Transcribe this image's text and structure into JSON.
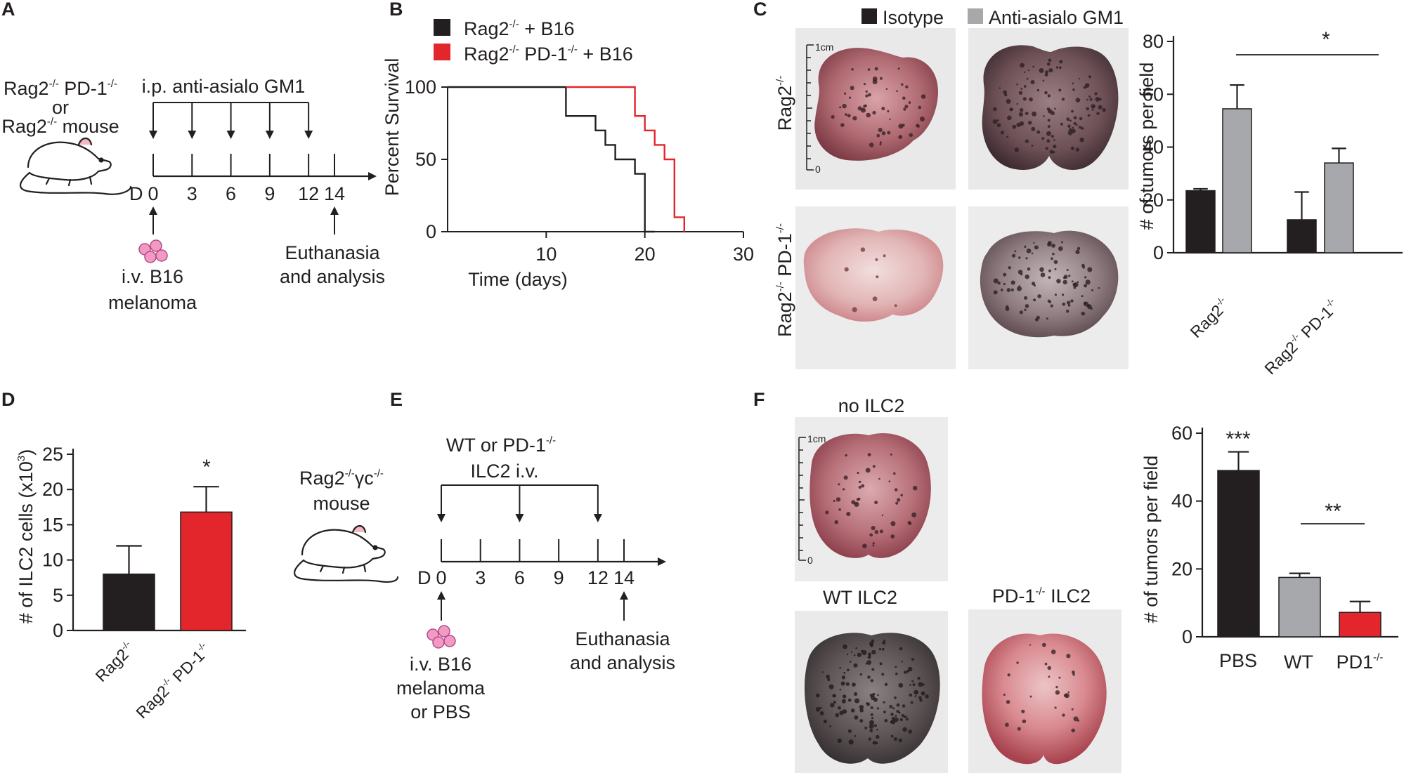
{
  "panels": {
    "A": {
      "letter": "A",
      "mouse": {
        "line1": "Rag2",
        "line1_sup": "-/-",
        "line1_rest": " PD-1",
        "line1_sup2": "-/-",
        "line2": "or",
        "line3": "Rag2",
        "line3_sup": "-/-",
        "line3_rest": " mouse"
      },
      "treatment": "i.p. anti-asialo GM1",
      "day_prefix": "D",
      "days": [
        "0",
        "3",
        "6",
        "9",
        "12",
        "14"
      ],
      "injection": [
        "i.v. B16",
        "melanoma"
      ],
      "endpoint": [
        "Euthanasia",
        "and analysis"
      ]
    },
    "B": {
      "letter": "B",
      "ylabel": "Percent Survival",
      "xlabel": "Time (days)",
      "yticks": [
        "0",
        "50",
        "100"
      ],
      "xticks": [
        "10",
        "20",
        "30"
      ],
      "legend": [
        {
          "pre": "Rag2",
          "sup": "-/-",
          "post": " + B16",
          "color": "#231f20"
        },
        {
          "pre": "Rag2",
          "sup": "-/-",
          "post": " PD-1",
          "sup2": "-/-",
          "post2": " + B16",
          "color": "#e3262b"
        }
      ]
    },
    "C": {
      "letter": "C",
      "legend": [
        {
          "label": "Isotype",
          "color": "#231f20"
        },
        {
          "label": "Anti-asialo GM1",
          "color": "#a6a8ab"
        }
      ],
      "row_labels": [
        {
          "pre": "Rag2",
          "sup": "-/-",
          "post": ""
        },
        {
          "pre": "Rag2",
          "sup": "-/-",
          "post": " PD-1",
          "sup2": "-/-"
        }
      ],
      "scale_top": "1cm",
      "scale_bottom": "0",
      "ylabel": "# of tumors per field",
      "yticks": [
        "0",
        "20",
        "40",
        "60",
        "80"
      ],
      "categories": [
        {
          "pre": "Rag2",
          "sup": "-/-",
          "post": ""
        },
        {
          "pre": "Rag2",
          "sup": "-/-",
          "post": " PD-1",
          "sup2": "-/-"
        }
      ],
      "significance": "*"
    },
    "D": {
      "letter": "D",
      "ylabel_pre": "# of ILC2 cells (x10",
      "ylabel_sup": "3",
      "ylabel_post": ")",
      "yticks": [
        "0",
        "5",
        "10",
        "15",
        "20",
        "25"
      ],
      "categories": [
        {
          "pre": "Rag2",
          "sup": "-/-",
          "post": ""
        },
        {
          "pre": "Rag2",
          "sup": "-/-",
          "post": " PD-1",
          "sup2": "-/-"
        }
      ],
      "significance": "*"
    },
    "E": {
      "letter": "E",
      "mouse": {
        "line1": "Rag2",
        "line1_sup": "-/-",
        "line1_mid": "γc",
        "line1_sup2": "-/-",
        "line2": "mouse"
      },
      "treatment": {
        "line1": "WT or PD-1",
        "line1_sup": "-/-",
        "line2": "ILC2 i.v."
      },
      "day_prefix": "D",
      "days": [
        "0",
        "3",
        "6",
        "9",
        "12",
        "14"
      ],
      "injection": [
        "i.v. B16",
        "melanoma",
        "or PBS"
      ],
      "endpoint": [
        "Euthanasia",
        "and analysis"
      ]
    },
    "F": {
      "letter": "F",
      "photo_labels": {
        "top": "no ILC2",
        "bottom_left": "WT ILC2",
        "bottom_right": {
          "pre": "PD-1",
          "sup": "-/-",
          "post": " ILC2"
        }
      },
      "scale_top": "1cm",
      "scale_bottom": "0",
      "ylabel": "# of tumors per field",
      "yticks": [
        "0",
        "20",
        "40",
        "60"
      ],
      "categories": [
        "PBS",
        "WT",
        "PD1"
      ],
      "category_sup": "-/-",
      "significance": [
        "***",
        "**"
      ]
    }
  },
  "chart_data": [
    {
      "panel": "B",
      "type": "line",
      "xlabel": "Time (days)",
      "ylabel": "Percent Survival",
      "xlim": [
        0,
        30
      ],
      "ylim": [
        0,
        100
      ],
      "series": [
        {
          "name": "Rag2-/- + B16",
          "color": "#231f20",
          "x": [
            0,
            12,
            12,
            15,
            15,
            16,
            16,
            17,
            17,
            19,
            19,
            20,
            20,
            21
          ],
          "y": [
            100,
            100,
            80,
            80,
            70,
            70,
            60,
            60,
            50,
            50,
            40,
            40,
            0,
            0
          ]
        },
        {
          "name": "Rag2-/- PD-1-/- + B16",
          "color": "#e3262b",
          "x": [
            12,
            19,
            19,
            20,
            20,
            21,
            21,
            22,
            22,
            23,
            23,
            24,
            24
          ],
          "y": [
            100,
            100,
            80,
            80,
            70,
            70,
            60,
            60,
            50,
            50,
            10,
            10,
            0
          ]
        }
      ]
    },
    {
      "panel": "C",
      "type": "bar",
      "ylabel": "# of tumors per field",
      "ylim": [
        0,
        80
      ],
      "categories": [
        "Rag2-/-",
        "Rag2-/- PD-1-/-"
      ],
      "series": [
        {
          "name": "Isotype",
          "color": "#231f20",
          "values": [
            23.5,
            12.5
          ],
          "errors": [
            0.7,
            10.5
          ]
        },
        {
          "name": "Anti-asialo GM1",
          "color": "#a6a8ab",
          "values": [
            54.5,
            34
          ],
          "errors": [
            9,
            5.5
          ]
        }
      ]
    },
    {
      "panel": "D",
      "type": "bar",
      "ylabel": "# of ILC2 cells (x10^3)",
      "ylim": [
        0,
        25
      ],
      "categories": [
        "Rag2-/-",
        "Rag2-/- PD-1-/-"
      ],
      "values": [
        8,
        16.8
      ],
      "errors": [
        4,
        3.6
      ],
      "colors": [
        "#231f20",
        "#e3262b"
      ]
    },
    {
      "panel": "F",
      "type": "bar",
      "ylabel": "# of tumors per field",
      "ylim": [
        0,
        60
      ],
      "categories": [
        "PBS",
        "WT",
        "PD1-/-"
      ],
      "values": [
        49,
        17.5,
        7.2
      ],
      "errors": [
        5.5,
        1.2,
        3.2
      ],
      "colors": [
        "#231f20",
        "#a6a8ab",
        "#e3262b"
      ]
    }
  ]
}
